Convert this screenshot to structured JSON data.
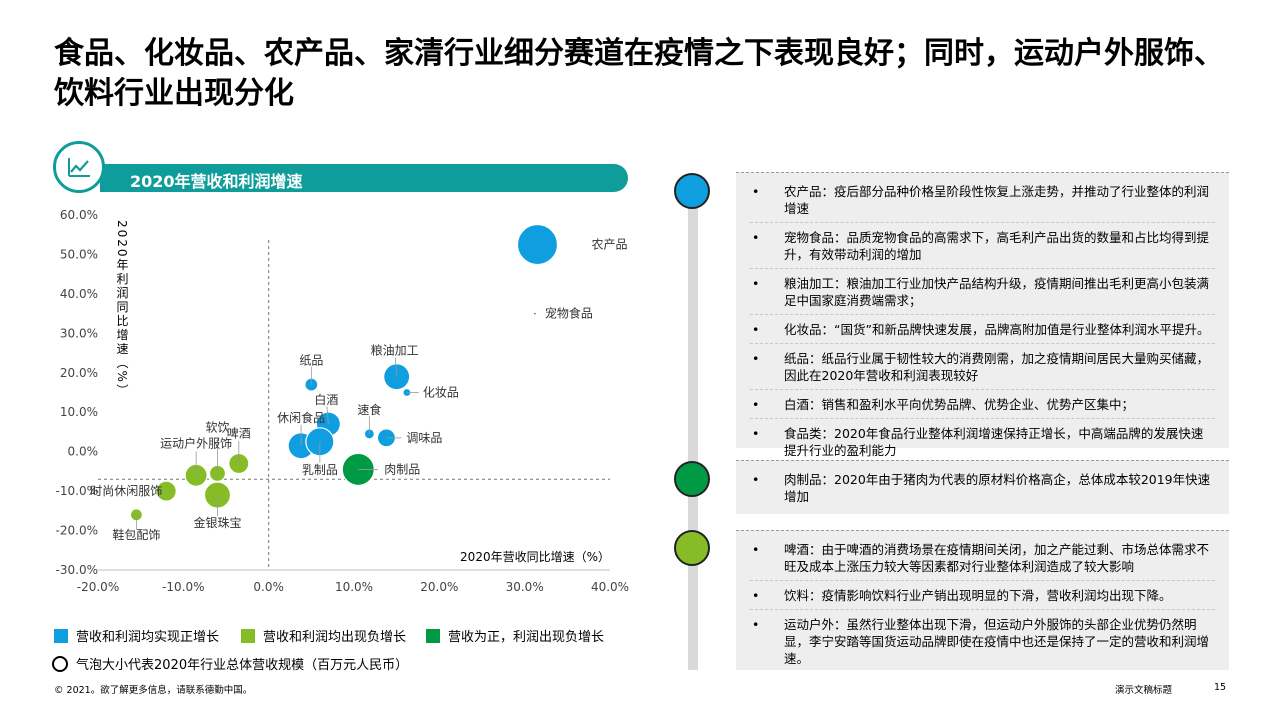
{
  "page_title": "食品、化妆品、农产品、家清行业细分赛道在疫情之下表现良好；同时，运动户外服饰、饮料行业出现分化",
  "colors": {
    "teal": "#0e9d9a",
    "blue": "#0f9fe0",
    "light_green": "#86bc25",
    "dark_green": "#009a44",
    "gray_panel": "#eeeeee"
  },
  "chart_banner": {
    "title": "2020年营收和利润增速",
    "icon": "line-chart-icon"
  },
  "chart_data": {
    "type": "scatter",
    "title": "2020年营收和利润增速",
    "xlabel": "2020年营收同比增速（%）",
    "ylabel": "2020年利润同比增速（%）",
    "xlim": [
      -20,
      40
    ],
    "ylim": [
      -30,
      60
    ],
    "x_ticks": [
      "-20.0%",
      "-10.0%",
      "0.0%",
      "10.0%",
      "20.0%",
      "30.0%",
      "40.0%"
    ],
    "y_ticks": [
      "60.0%",
      "50.0%",
      "40.0%",
      "30.0%",
      "20.0%",
      "10.0%",
      "0.0%",
      "-10.0%",
      "-20.0%",
      "-30.0%"
    ],
    "reference_lines": {
      "x": 0,
      "y": -7
    },
    "series": [
      {
        "name": "营收和利润均实现正增长",
        "color": "#0f9fe0",
        "points": [
          {
            "label": "农产品",
            "x": 31.5,
            "y": 52.5,
            "size": 20
          },
          {
            "label": "宠物食品",
            "x": 31.2,
            "y": 35.0,
            "size": 1.5
          },
          {
            "label": "粮油加工",
            "x": 15.0,
            "y": 19.0,
            "size": 13
          },
          {
            "label": "化妆品",
            "x": 16.2,
            "y": 15.0,
            "size": 4
          },
          {
            "label": "纸品",
            "x": 5.0,
            "y": 17.0,
            "size": 6.5
          },
          {
            "label": "白酒",
            "x": 7.0,
            "y": 7.0,
            "size": 12
          },
          {
            "label": "休闲食品",
            "x": 3.8,
            "y": 1.5,
            "size": 13
          },
          {
            "label": "乳制品",
            "x": 6.0,
            "y": 2.5,
            "size": 14
          },
          {
            "label": "速食",
            "x": 11.8,
            "y": 4.5,
            "size": 5
          },
          {
            "label": "调味品",
            "x": 13.8,
            "y": 3.5,
            "size": 9
          }
        ]
      },
      {
        "name": "营收和利润均出现负增长",
        "color": "#86bc25",
        "points": [
          {
            "label": "软饮",
            "x": -6.0,
            "y": -5.5,
            "size": 8
          },
          {
            "label": "啤酒",
            "x": -3.5,
            "y": -3.0,
            "size": 10
          },
          {
            "label": "运动户外服饰",
            "x": -8.5,
            "y": -6.0,
            "size": 11
          },
          {
            "label": "时尚休闲服饰",
            "x": -12.0,
            "y": -10.0,
            "size": 10
          },
          {
            "label": "金银珠宝",
            "x": -6.0,
            "y": -11.0,
            "size": 13
          },
          {
            "label": "鞋包配饰",
            "x": -15.5,
            "y": -16.0,
            "size": 6
          }
        ]
      },
      {
        "name": "营收为正，利润出现负增长",
        "color": "#009a44",
        "points": [
          {
            "label": "肉制品",
            "x": 10.5,
            "y": -4.5,
            "size": 16
          }
        ]
      }
    ]
  },
  "legend": {
    "items": [
      "营收和利润均实现正增长",
      "营收和利润均出现负增长",
      "营收为正，利润出现负增长"
    ],
    "bubble_note": "气泡大小代表2020年行业总体营收规模（百万元人民币）"
  },
  "notes": {
    "blue": [
      "农产品：疫后部分品种价格呈阶段性恢复上涨走势，并推动了行业整体的利润增速",
      "宠物食品：品质宠物食品的高需求下，高毛利产品出货的数量和占比均得到提升，有效带动利润的增加",
      "粮油加工：粮油加工行业加快产品结构升级，疫情期间推出毛利更高小包装满足中国家庭消费端需求；",
      "化妆品：“国货”和新品牌快速发展，品牌高附加值是行业整体利润水平提升。",
      "纸品：纸品行业属于韧性较大的消费刚需，加之疫情期间居民大量购买储藏，因此在2020年营收和利润表现较好",
      "白酒：销售和盈利水平向优势品牌、优势企业、优势产区集中；",
      "食品类：2020年食品行业整体利润增速保持正增长，中高端品牌的发展快速提升行业的盈利能力"
    ],
    "dark_green": [
      "肉制品：2020年由于猪肉为代表的原材料价格高企，总体成本较2019年快速增加"
    ],
    "light_green": [
      "啤酒：由于啤酒的消费场景在疫情期间关闭，加之产能过剩、市场总体需求不旺及成本上涨压力较大等因素都对行业整体利润造成了较大影响",
      "饮料：疫情影响饮料行业产销出现明显的下滑，营收利润均出现下降。",
      "运动户外：虽然行业整体出现下滑，但运动户外服饰的头部企业优势仍然明显，李宁安踏等国货运动品牌即使在疫情中也还是保持了一定的营收和利润增速。"
    ]
  },
  "footer": {
    "copyright": "© 2021。欲了解更多信息，请联系德勤中国。",
    "doc_title": "演示文稿标题",
    "page_number": "15"
  }
}
